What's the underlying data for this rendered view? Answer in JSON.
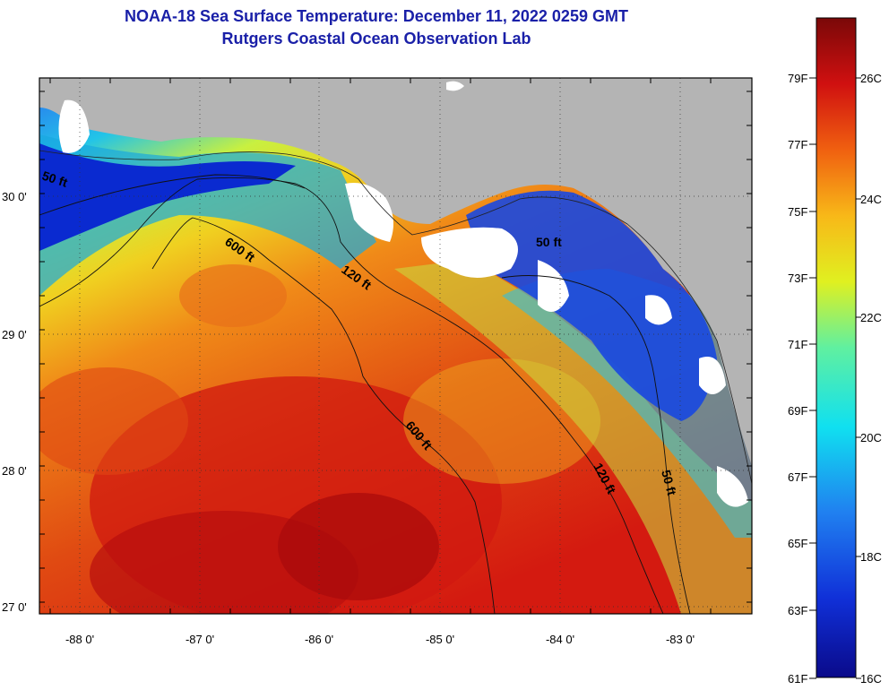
{
  "title_line1": "NOAA-18 Sea Surface Temperature:  December 11, 2022 0259 GMT",
  "title_line2": "Rutgers Coastal Ocean Observation Lab",
  "map": {
    "lat_labels": [
      "30 0'",
      "29 0'",
      "28 0'",
      "27 0'"
    ],
    "lon_labels": [
      "-88 0'",
      "-87 0'",
      "-86 0'",
      "-85 0'",
      "-84 0'",
      "-83 0'"
    ],
    "contour_labels": [
      "50 ft",
      "600 ft",
      "120 ft",
      "50 ft",
      "600 ft",
      "120 ft",
      "50 ft"
    ],
    "colors": {
      "land": "#b4b4b4",
      "cloud": "#ffffff",
      "warm": "#d41010",
      "cool": "#0a2ad0"
    }
  },
  "colorbar": {
    "f_labels": [
      "79F",
      "77F",
      "75F",
      "73F",
      "71F",
      "69F",
      "67F",
      "65F",
      "63F",
      "61F"
    ],
    "c_labels": [
      "26C",
      "24C",
      "22C",
      "20C",
      "18C",
      "16C"
    ],
    "range_c": [
      16,
      27
    ]
  }
}
